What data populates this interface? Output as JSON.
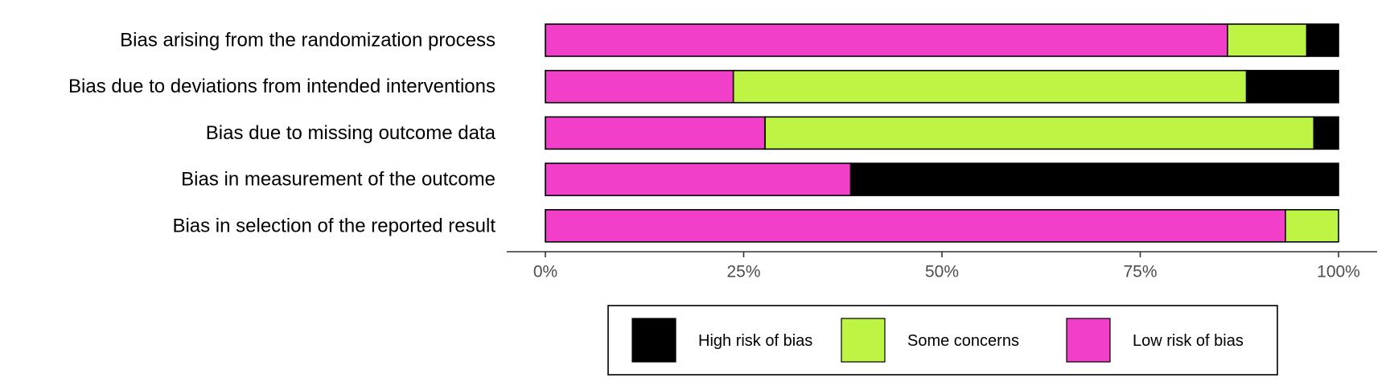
{
  "chart_data": {
    "type": "bar",
    "orientation": "horizontal",
    "stacked": true,
    "categories": [
      "Bias arising from the randomization process",
      "Bias due to deviations from intended interventions",
      "Bias due to missing outcome data",
      "Bias in measurement of the outcome",
      "Bias in selection of the reported result"
    ],
    "series": [
      {
        "name": "Low risk of bias",
        "color": "#f23fc9",
        "values": [
          86,
          23.7,
          27.7,
          38.5,
          93.3
        ]
      },
      {
        "name": "Some concerns",
        "color": "#bef443",
        "values": [
          10,
          64.7,
          69.2,
          0,
          6.7
        ]
      },
      {
        "name": "High risk of bias",
        "color": "#000000",
        "values": [
          4,
          11.6,
          3.1,
          61.5,
          0
        ]
      }
    ],
    "xlim": [
      0,
      100
    ],
    "x_ticks": [
      "0%",
      "25%",
      "50%",
      "75%",
      "100%"
    ],
    "grid": false,
    "legend": {
      "position": "bottom",
      "order": [
        "High risk of bias",
        "Some concerns",
        "Low risk of bias"
      ]
    }
  }
}
